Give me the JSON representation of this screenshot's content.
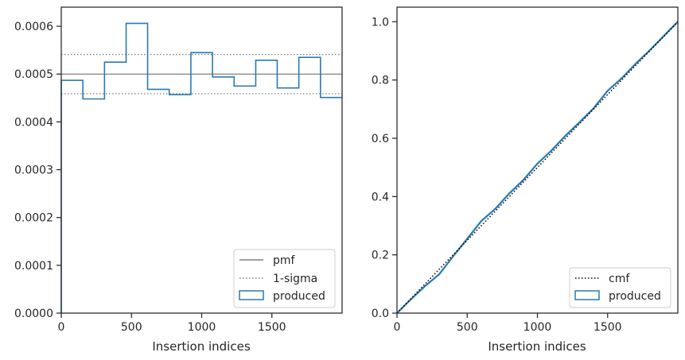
{
  "chart_data": [
    {
      "type": "histogram",
      "xlabel": "Insertion indices",
      "ylabel": "",
      "xlim": [
        0,
        2000
      ],
      "ylim": [
        0,
        0.00064
      ],
      "xticks": [
        0,
        500,
        1000,
        1500
      ],
      "xtick_labels": [
        "0",
        "500",
        "1000",
        "1500"
      ],
      "yticks": [
        0,
        0.0001,
        0.0002,
        0.0003,
        0.0004,
        0.0005,
        0.0006
      ],
      "ytick_labels": [
        "0.0000",
        "0.0001",
        "0.0002",
        "0.0003",
        "0.0004",
        "0.0005",
        "0.0006"
      ],
      "pmf": 0.0005,
      "sigma_upper": 0.000541,
      "sigma_lower": 0.000459,
      "bin_edges": [
        0,
        154,
        308,
        462,
        615,
        769,
        923,
        1077,
        1231,
        1385,
        1538,
        1692,
        1846,
        2000
      ],
      "bin_values": [
        0.000487,
        0.000448,
        0.000525,
        0.000606,
        0.000468,
        0.000457,
        0.000545,
        0.000494,
        0.000475,
        0.000529,
        0.000471,
        0.000535,
        0.000451
      ],
      "colors": {
        "produced": "#2a7ab0",
        "pmf": "#808080",
        "sigma": "#808080"
      },
      "legend": {
        "placement": "lower-right",
        "entries": [
          {
            "label": "pmf",
            "style": "solid-line"
          },
          {
            "label": "1-sigma",
            "style": "dotted-line"
          },
          {
            "label": "produced",
            "style": "step-box"
          }
        ]
      }
    },
    {
      "type": "line",
      "xlabel": "Insertion indices",
      "ylabel": "",
      "xlim": [
        0,
        2000
      ],
      "ylim": [
        0,
        1.05
      ],
      "xticks": [
        0,
        500,
        1000,
        1500
      ],
      "xtick_labels": [
        "0",
        "500",
        "1000",
        "1500"
      ],
      "yticks": [
        0,
        0.2,
        0.4,
        0.6,
        0.8,
        1.0
      ],
      "ytick_labels": [
        "0.0",
        "0.2",
        "0.4",
        "0.6",
        "0.8",
        "1.0"
      ],
      "cmf": {
        "x": [
          0,
          2000
        ],
        "y": [
          0,
          1.0
        ]
      },
      "produced": {
        "x": [
          0,
          100,
          200,
          300,
          400,
          500,
          600,
          700,
          800,
          900,
          1000,
          1100,
          1200,
          1300,
          1400,
          1500,
          1600,
          1700,
          1800,
          1900,
          2000
        ],
        "y": [
          0,
          0.048,
          0.093,
          0.133,
          0.195,
          0.255,
          0.316,
          0.358,
          0.411,
          0.457,
          0.513,
          0.558,
          0.609,
          0.655,
          0.703,
          0.763,
          0.806,
          0.856,
          0.902,
          0.951,
          1.0
        ]
      },
      "colors": {
        "produced": "#2a7ab0",
        "cmf": "#000000"
      },
      "legend": {
        "placement": "lower-right",
        "entries": [
          {
            "label": "cmf",
            "style": "dotted-line"
          },
          {
            "label": "produced",
            "style": "step-box"
          }
        ]
      }
    }
  ]
}
